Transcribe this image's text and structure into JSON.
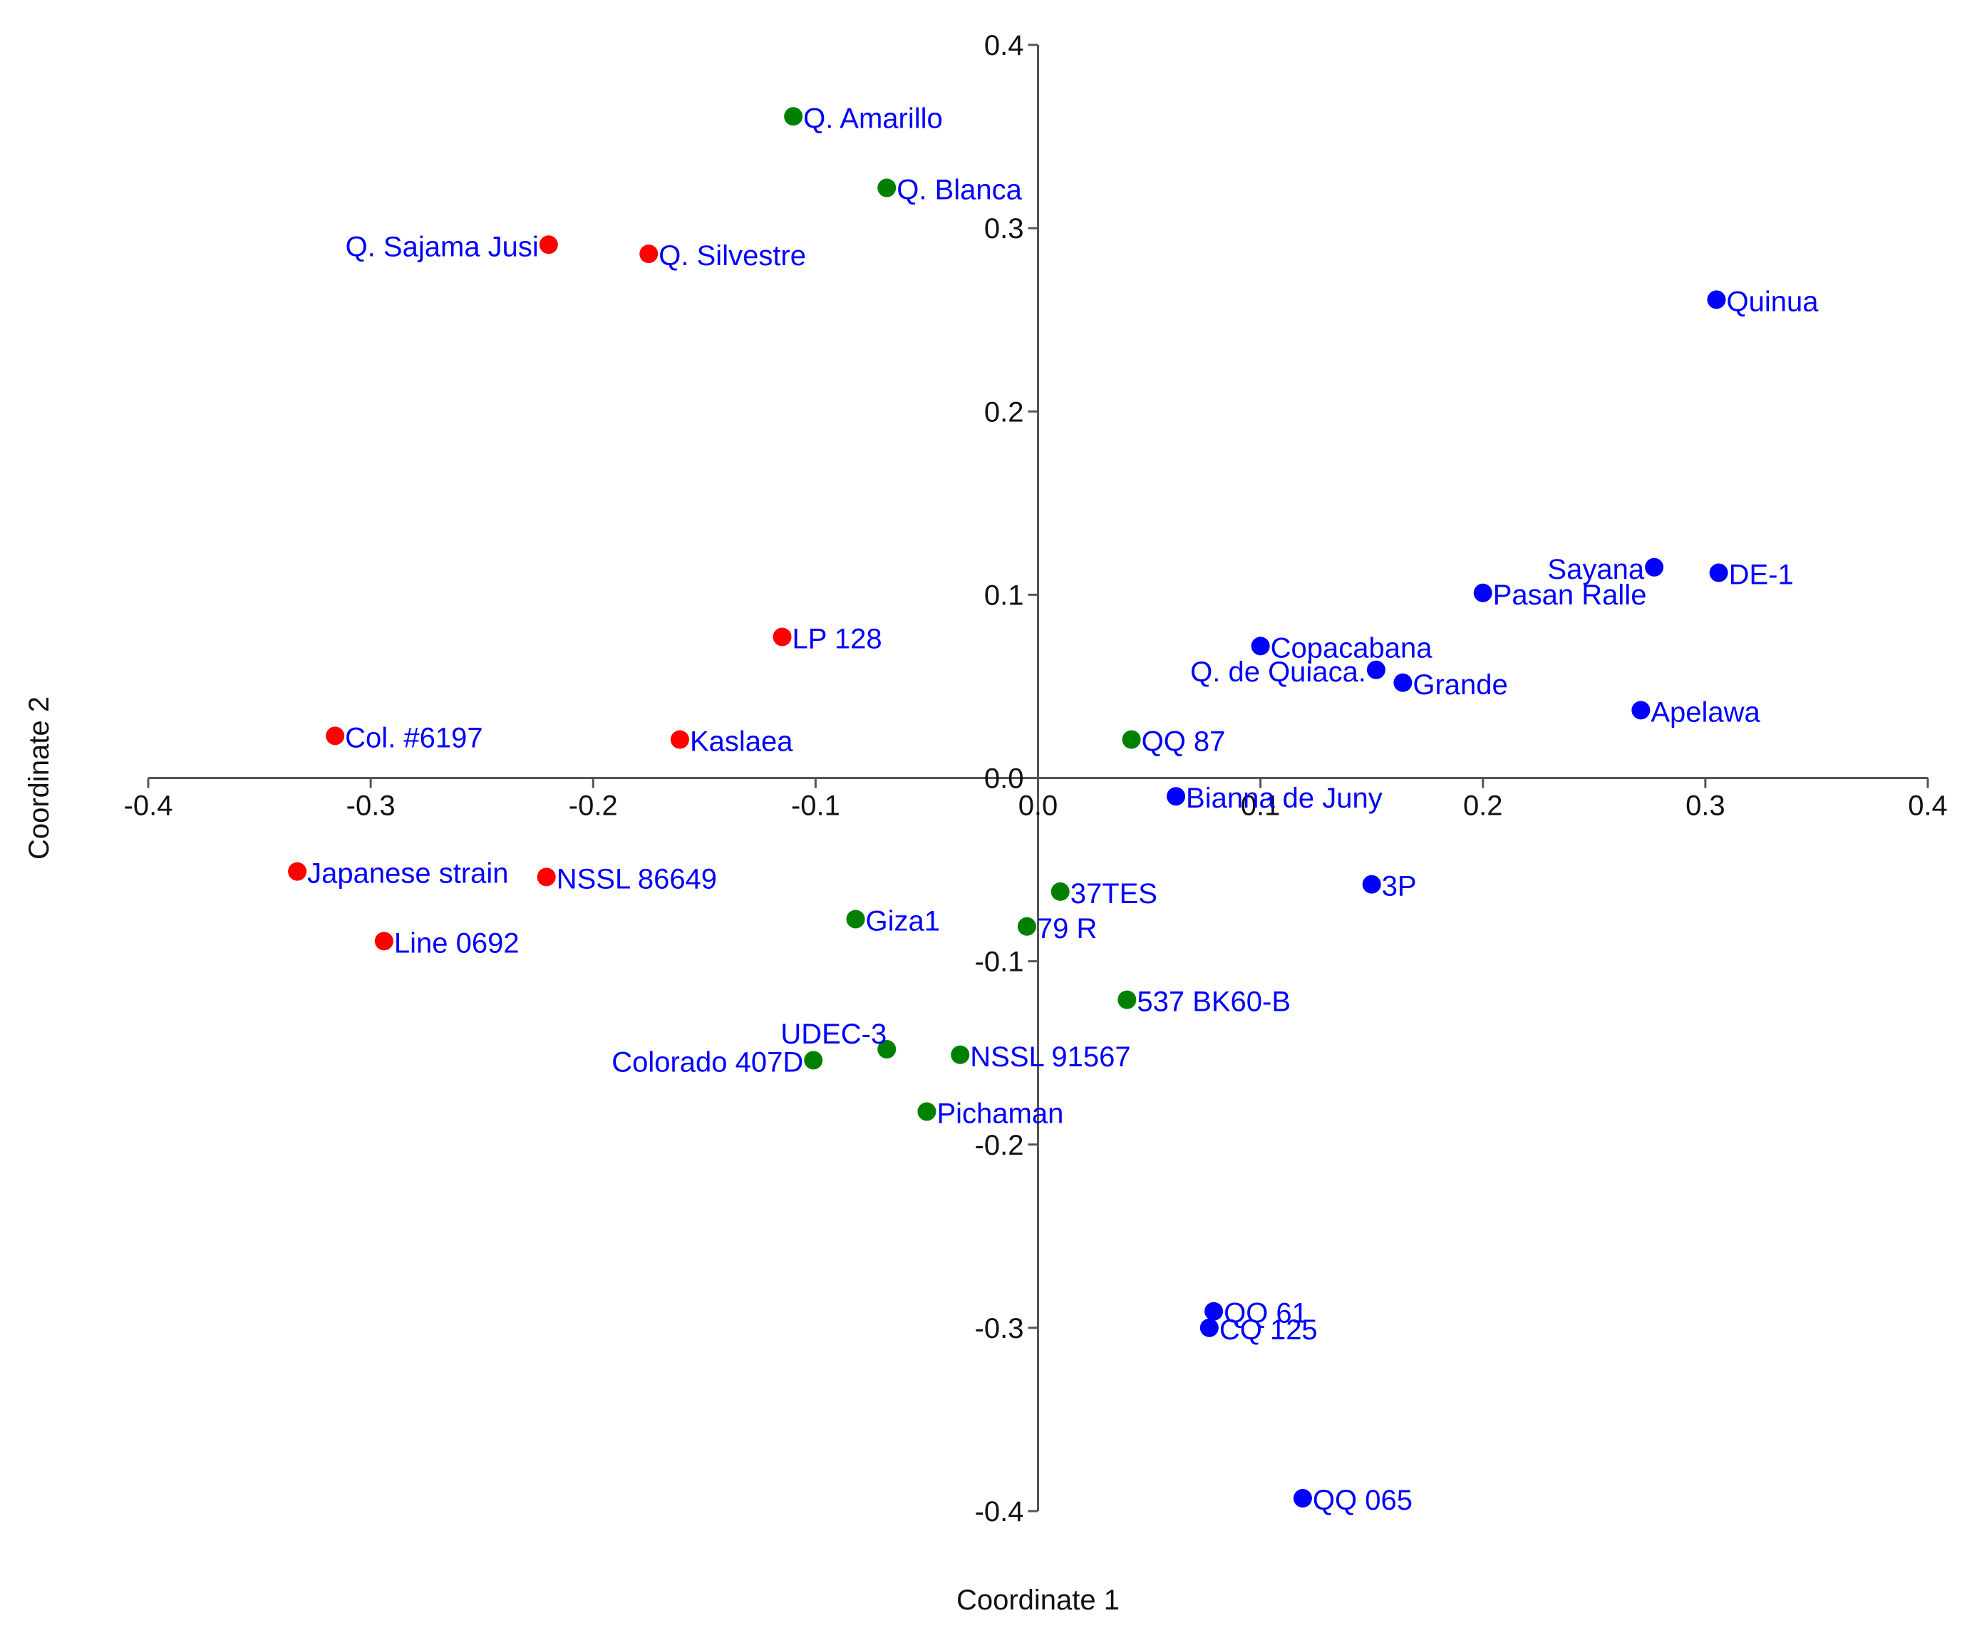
{
  "chart_data": {
    "type": "scatter",
    "xlabel": "Coordinate 1",
    "ylabel": "Coordinate 2",
    "xlim": [
      -0.4,
      0.4
    ],
    "ylim": [
      -0.4,
      0.4
    ],
    "x_ticks": [
      "-0.4",
      "-0.3",
      "-0.2",
      "-0.1",
      "0.0",
      "0.1",
      "0.2",
      "0.3",
      "0.4"
    ],
    "y_ticks": [
      "0.4",
      "0.3",
      "0.2",
      "0.1",
      "0.0",
      "-0.1",
      "-0.2",
      "-0.3",
      "-0.4"
    ],
    "grid": false,
    "label_color": "#0000ff",
    "groups": [
      {
        "color": "#ff0000",
        "points": [
          {
            "label": "Q. Sajama Jusi",
            "x": -0.22,
            "y": 0.291,
            "label_side": "left"
          },
          {
            "label": "Q. Silvestre",
            "x": -0.175,
            "y": 0.286,
            "label_side": "right"
          },
          {
            "label": "LP 128",
            "x": -0.115,
            "y": 0.077,
            "label_side": "right"
          },
          {
            "label": "Col. #6197",
            "x": -0.316,
            "y": 0.023,
            "label_side": "right"
          },
          {
            "label": "Kaslaea",
            "x": -0.161,
            "y": 0.021,
            "label_side": "right"
          },
          {
            "label": "Japanese strain",
            "x": -0.333,
            "y": -0.051,
            "label_side": "right"
          },
          {
            "label": "NSSL 86649",
            "x": -0.221,
            "y": -0.054,
            "label_side": "right"
          },
          {
            "label": "Line 0692",
            "x": -0.294,
            "y": -0.089,
            "label_side": "right"
          }
        ]
      },
      {
        "color": "#008000",
        "points": [
          {
            "label": "Q. Amarillo",
            "x": -0.11,
            "y": 0.361,
            "label_side": "right"
          },
          {
            "label": "Q. Blanca",
            "x": -0.068,
            "y": 0.322,
            "label_side": "right"
          },
          {
            "label": "QQ 87",
            "x": 0.042,
            "y": 0.021,
            "label_side": "right"
          },
          {
            "label": "37TES",
            "x": 0.01,
            "y": -0.062,
            "label_side": "right"
          },
          {
            "label": "79 R",
            "x": -0.005,
            "y": -0.081,
            "label_side": "right"
          },
          {
            "label": "Giza1",
            "x": -0.082,
            "y": -0.077,
            "label_side": "right"
          },
          {
            "label": "537 BK60-B",
            "x": 0.04,
            "y": -0.121,
            "label_side": "right"
          },
          {
            "label": "UDEC-3",
            "x": -0.068,
            "y": -0.148,
            "label_side": "above-left"
          },
          {
            "label": "Colorado 407D",
            "x": -0.101,
            "y": -0.154,
            "label_side": "left"
          },
          {
            "label": "NSSL 91567",
            "x": -0.035,
            "y": -0.151,
            "label_side": "right"
          },
          {
            "label": "Pichaman",
            "x": -0.05,
            "y": -0.182,
            "label_side": "right"
          }
        ]
      },
      {
        "color": "#0000ff",
        "points": [
          {
            "label": "Quinua",
            "x": 0.305,
            "y": 0.261,
            "label_side": "right"
          },
          {
            "label": "Sayana",
            "x": 0.277,
            "y": 0.115,
            "label_side": "left"
          },
          {
            "label": "DE-1",
            "x": 0.306,
            "y": 0.112,
            "label_side": "right"
          },
          {
            "label": "Pasan Ralle",
            "x": 0.2,
            "y": 0.101,
            "label_side": "right"
          },
          {
            "label": "Copacabana",
            "x": 0.1,
            "y": 0.072,
            "label_side": "right"
          },
          {
            "label": "Q. de Quiaca.",
            "x": 0.152,
            "y": 0.059,
            "label_side": "left"
          },
          {
            "label": "Grande",
            "x": 0.164,
            "y": 0.052,
            "label_side": "right"
          },
          {
            "label": "Apelawa",
            "x": 0.271,
            "y": 0.037,
            "label_side": "right"
          },
          {
            "label": "Bianna de Juny",
            "x": 0.062,
            "y": -0.01,
            "label_side": "right"
          },
          {
            "label": "3P",
            "x": 0.15,
            "y": -0.058,
            "label_side": "right"
          },
          {
            "label": "QQ 61",
            "x": 0.079,
            "y": -0.291,
            "label_side": "right"
          },
          {
            "label": "CQ 125",
            "x": 0.077,
            "y": -0.3,
            "label_side": "right"
          },
          {
            "label": "QQ 065",
            "x": 0.119,
            "y": -0.393,
            "label_side": "right"
          }
        ]
      }
    ]
  }
}
